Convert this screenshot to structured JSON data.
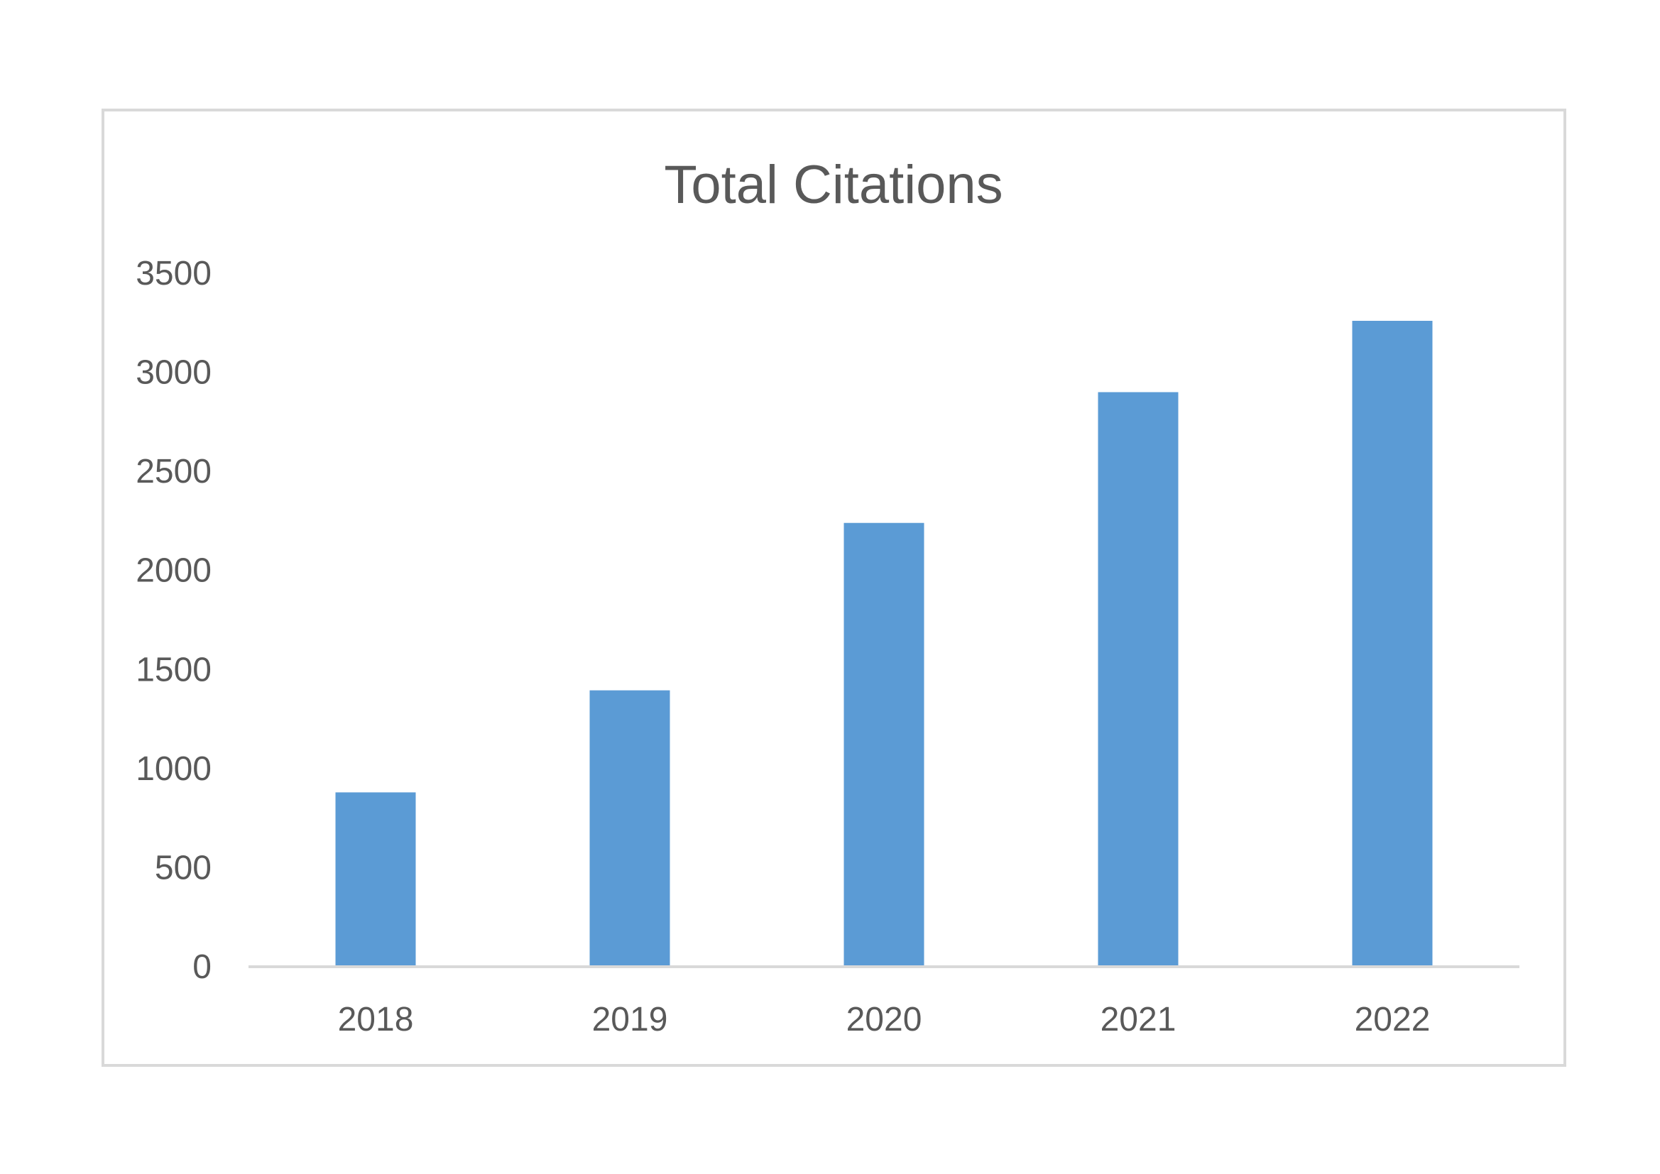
{
  "chart_data": {
    "type": "bar",
    "title": "Total Citations",
    "xlabel": "",
    "ylabel": "",
    "categories": [
      "2018",
      "2019",
      "2020",
      "2021",
      "2022"
    ],
    "values": [
      880,
      1395,
      2240,
      2900,
      3260
    ],
    "ylim": [
      0,
      3500
    ],
    "yticks": [
      "0",
      "500",
      "1000",
      "1500",
      "2000",
      "2500",
      "3000",
      "3500"
    ],
    "grid": false,
    "legend": "none",
    "bar_color": "#5b9bd5",
    "axis_color": "#d9d9d9",
    "text_color": "#595959"
  }
}
